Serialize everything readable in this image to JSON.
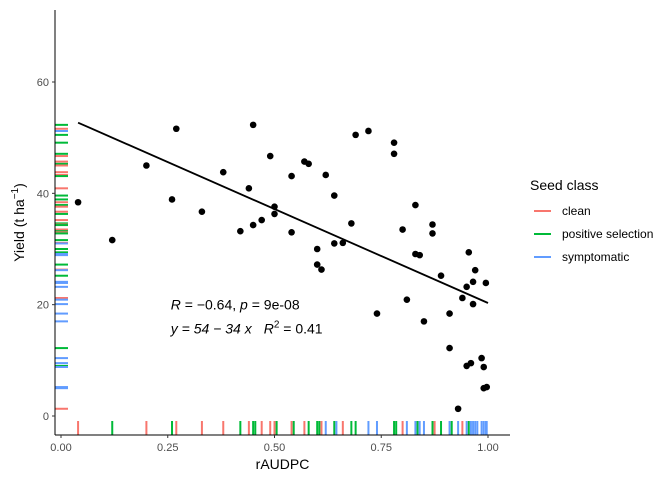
{
  "chart_data": {
    "type": "scatter",
    "title": "",
    "xlabel": "rAUDPC",
    "ylabel_text": "Yield (t ha",
    "ylabel_sup": "−1",
    "ylabel_close": ")",
    "xlim": [
      0,
      1
    ],
    "ylim": [
      -3,
      74
    ],
    "xticks": [
      0.0,
      0.25,
      0.5,
      0.75,
      1.0
    ],
    "xtick_labels": [
      "0.00",
      "0.25",
      "0.50",
      "0.75",
      "1.00"
    ],
    "yticks": [
      0,
      20,
      40,
      60
    ],
    "ytick_labels": [
      "0",
      "20",
      "40",
      "60"
    ],
    "grid": false,
    "legend": {
      "title": "Seed class",
      "position": "right",
      "entries": [
        {
          "label": "clean",
          "color": "#F8766D"
        },
        {
          "label": "positive selection",
          "color": "#00BA38"
        },
        {
          "label": "symptomatic",
          "color": "#619CFF"
        }
      ]
    },
    "points": [
      {
        "x": 0.04,
        "y": 38.4
      },
      {
        "x": 0.12,
        "y": 31.6
      },
      {
        "x": 0.2,
        "y": 45.0
      },
      {
        "x": 0.26,
        "y": 38.9
      },
      {
        "x": 0.27,
        "y": 51.6
      },
      {
        "x": 0.33,
        "y": 36.7
      },
      {
        "x": 0.38,
        "y": 43.8
      },
      {
        "x": 0.42,
        "y": 33.2
      },
      {
        "x": 0.44,
        "y": 40.9
      },
      {
        "x": 0.45,
        "y": 34.3
      },
      {
        "x": 0.45,
        "y": 52.3
      },
      {
        "x": 0.47,
        "y": 35.2
      },
      {
        "x": 0.49,
        "y": 46.7
      },
      {
        "x": 0.5,
        "y": 37.6
      },
      {
        "x": 0.5,
        "y": 36.3
      },
      {
        "x": 0.54,
        "y": 33.0
      },
      {
        "x": 0.54,
        "y": 43.1
      },
      {
        "x": 0.57,
        "y": 45.7
      },
      {
        "x": 0.58,
        "y": 45.3
      },
      {
        "x": 0.6,
        "y": 30.0
      },
      {
        "x": 0.6,
        "y": 27.2
      },
      {
        "x": 0.61,
        "y": 26.3
      },
      {
        "x": 0.62,
        "y": 43.3
      },
      {
        "x": 0.64,
        "y": 39.6
      },
      {
        "x": 0.64,
        "y": 31.0
      },
      {
        "x": 0.66,
        "y": 31.1
      },
      {
        "x": 0.68,
        "y": 34.6
      },
      {
        "x": 0.69,
        "y": 50.5
      },
      {
        "x": 0.72,
        "y": 51.2
      },
      {
        "x": 0.74,
        "y": 18.4
      },
      {
        "x": 0.78,
        "y": 49.1
      },
      {
        "x": 0.78,
        "y": 47.1
      },
      {
        "x": 0.8,
        "y": 33.5
      },
      {
        "x": 0.81,
        "y": 20.9
      },
      {
        "x": 0.83,
        "y": 29.1
      },
      {
        "x": 0.83,
        "y": 37.9
      },
      {
        "x": 0.84,
        "y": 28.9
      },
      {
        "x": 0.85,
        "y": 17.0
      },
      {
        "x": 0.87,
        "y": 32.8
      },
      {
        "x": 0.87,
        "y": 34.4
      },
      {
        "x": 0.89,
        "y": 25.2
      },
      {
        "x": 0.91,
        "y": 18.4
      },
      {
        "x": 0.91,
        "y": 12.2
      },
      {
        "x": 0.93,
        "y": 1.3
      },
      {
        "x": 0.94,
        "y": 21.2
      },
      {
        "x": 0.95,
        "y": 23.2
      },
      {
        "x": 0.955,
        "y": 29.4
      },
      {
        "x": 0.95,
        "y": 9.0
      },
      {
        "x": 0.96,
        "y": 9.5
      },
      {
        "x": 0.965,
        "y": 20.1
      },
      {
        "x": 0.965,
        "y": 24.1
      },
      {
        "x": 0.97,
        "y": 26.2
      },
      {
        "x": 0.985,
        "y": 10.4
      },
      {
        "x": 0.99,
        "y": 8.8
      },
      {
        "x": 0.99,
        "y": 5.0
      },
      {
        "x": 0.995,
        "y": 23.9
      },
      {
        "x": 0.997,
        "y": 5.2
      }
    ],
    "fit_line": {
      "x": [
        0.04,
        1.0
      ],
      "y": [
        52.7,
        20.3
      ]
    },
    "annotation": {
      "line1_R_label": "R",
      "line1_R_val": " = −0.64, ",
      "line1_p_label": "p",
      "line1_p_val": " = 9e-08",
      "line2_eq": "y = 54 − 34 x",
      "line2_r2_label": "R",
      "line2_r2_sup": "2",
      "line2_r2_val": " = 0.41",
      "x": 0.25,
      "y1": 20.0,
      "y2": 15.7
    },
    "rug_x": [
      {
        "v": 0.04,
        "class": "clean"
      },
      {
        "v": 0.12,
        "class": "positive selection"
      },
      {
        "v": 0.2,
        "class": "clean"
      },
      {
        "v": 0.26,
        "class": "positive selection"
      },
      {
        "v": 0.27,
        "class": "clean"
      },
      {
        "v": 0.33,
        "class": "clean"
      },
      {
        "v": 0.38,
        "class": "clean"
      },
      {
        "v": 0.42,
        "class": "positive selection"
      },
      {
        "v": 0.44,
        "class": "clean"
      },
      {
        "v": 0.45,
        "class": "positive selection"
      },
      {
        "v": 0.455,
        "class": "positive selection"
      },
      {
        "v": 0.47,
        "class": "clean"
      },
      {
        "v": 0.49,
        "class": "clean"
      },
      {
        "v": 0.5,
        "class": "clean"
      },
      {
        "v": 0.505,
        "class": "positive selection"
      },
      {
        "v": 0.54,
        "class": "clean"
      },
      {
        "v": 0.545,
        "class": "positive selection"
      },
      {
        "v": 0.57,
        "class": "clean"
      },
      {
        "v": 0.58,
        "class": "positive selection"
      },
      {
        "v": 0.6,
        "class": "positive selection"
      },
      {
        "v": 0.605,
        "class": "positive selection"
      },
      {
        "v": 0.61,
        "class": "clean"
      },
      {
        "v": 0.62,
        "class": "symptomatic"
      },
      {
        "v": 0.64,
        "class": "positive selection"
      },
      {
        "v": 0.645,
        "class": "symptomatic"
      },
      {
        "v": 0.66,
        "class": "clean"
      },
      {
        "v": 0.68,
        "class": "positive selection"
      },
      {
        "v": 0.69,
        "class": "positive selection"
      },
      {
        "v": 0.72,
        "class": "symptomatic"
      },
      {
        "v": 0.74,
        "class": "symptomatic"
      },
      {
        "v": 0.78,
        "class": "positive selection"
      },
      {
        "v": 0.785,
        "class": "positive selection"
      },
      {
        "v": 0.8,
        "class": "clean"
      },
      {
        "v": 0.81,
        "class": "symptomatic"
      },
      {
        "v": 0.83,
        "class": "symptomatic"
      },
      {
        "v": 0.835,
        "class": "positive selection"
      },
      {
        "v": 0.84,
        "class": "symptomatic"
      },
      {
        "v": 0.85,
        "class": "symptomatic"
      },
      {
        "v": 0.87,
        "class": "positive selection"
      },
      {
        "v": 0.875,
        "class": "clean"
      },
      {
        "v": 0.89,
        "class": "positive selection"
      },
      {
        "v": 0.91,
        "class": "symptomatic"
      },
      {
        "v": 0.915,
        "class": "positive selection"
      },
      {
        "v": 0.93,
        "class": "symptomatic"
      },
      {
        "v": 0.94,
        "class": "clean"
      },
      {
        "v": 0.95,
        "class": "symptomatic"
      },
      {
        "v": 0.955,
        "class": "positive selection"
      },
      {
        "v": 0.96,
        "class": "symptomatic"
      },
      {
        "v": 0.965,
        "class": "symptomatic"
      },
      {
        "v": 0.97,
        "class": "symptomatic"
      },
      {
        "v": 0.975,
        "class": "symptomatic"
      },
      {
        "v": 0.985,
        "class": "symptomatic"
      },
      {
        "v": 0.99,
        "class": "symptomatic"
      },
      {
        "v": 0.995,
        "class": "symptomatic"
      },
      {
        "v": 0.997,
        "class": "symptomatic"
      }
    ],
    "rug_y": [
      {
        "v": 52.3,
        "class": "positive selection"
      },
      {
        "v": 51.6,
        "class": "clean"
      },
      {
        "v": 51.2,
        "class": "symptomatic"
      },
      {
        "v": 50.5,
        "class": "positive selection"
      },
      {
        "v": 49.1,
        "class": "positive selection"
      },
      {
        "v": 47.1,
        "class": "positive selection"
      },
      {
        "v": 46.7,
        "class": "clean"
      },
      {
        "v": 45.7,
        "class": "clean"
      },
      {
        "v": 45.3,
        "class": "positive selection"
      },
      {
        "v": 45.0,
        "class": "clean"
      },
      {
        "v": 43.8,
        "class": "clean"
      },
      {
        "v": 43.3,
        "class": "clean"
      },
      {
        "v": 43.1,
        "class": "positive selection"
      },
      {
        "v": 40.9,
        "class": "clean"
      },
      {
        "v": 39.6,
        "class": "positive selection"
      },
      {
        "v": 38.9,
        "class": "positive selection"
      },
      {
        "v": 38.4,
        "class": "clean"
      },
      {
        "v": 37.9,
        "class": "positive selection"
      },
      {
        "v": 37.6,
        "class": "clean"
      },
      {
        "v": 36.7,
        "class": "clean"
      },
      {
        "v": 36.3,
        "class": "positive selection"
      },
      {
        "v": 35.2,
        "class": "clean"
      },
      {
        "v": 34.6,
        "class": "positive selection"
      },
      {
        "v": 34.4,
        "class": "clean"
      },
      {
        "v": 34.3,
        "class": "positive selection"
      },
      {
        "v": 33.5,
        "class": "clean"
      },
      {
        "v": 33.2,
        "class": "positive selection"
      },
      {
        "v": 33.0,
        "class": "clean"
      },
      {
        "v": 32.8,
        "class": "positive selection"
      },
      {
        "v": 31.6,
        "class": "positive selection"
      },
      {
        "v": 31.1,
        "class": "clean"
      },
      {
        "v": 31.0,
        "class": "symptomatic"
      },
      {
        "v": 30.0,
        "class": "positive selection"
      },
      {
        "v": 29.4,
        "class": "positive selection"
      },
      {
        "v": 29.1,
        "class": "symptomatic"
      },
      {
        "v": 28.9,
        "class": "symptomatic"
      },
      {
        "v": 27.2,
        "class": "positive selection"
      },
      {
        "v": 26.3,
        "class": "clean"
      },
      {
        "v": 26.2,
        "class": "symptomatic"
      },
      {
        "v": 25.2,
        "class": "positive selection"
      },
      {
        "v": 24.1,
        "class": "symptomatic"
      },
      {
        "v": 23.9,
        "class": "symptomatic"
      },
      {
        "v": 23.2,
        "class": "symptomatic"
      },
      {
        "v": 21.2,
        "class": "clean"
      },
      {
        "v": 20.9,
        "class": "symptomatic"
      },
      {
        "v": 20.1,
        "class": "symptomatic"
      },
      {
        "v": 18.4,
        "class": "symptomatic"
      },
      {
        "v": 17.0,
        "class": "symptomatic"
      },
      {
        "v": 12.2,
        "class": "positive selection"
      },
      {
        "v": 10.4,
        "class": "symptomatic"
      },
      {
        "v": 9.5,
        "class": "symptomatic"
      },
      {
        "v": 9.0,
        "class": "positive selection"
      },
      {
        "v": 8.8,
        "class": "symptomatic"
      },
      {
        "v": 5.2,
        "class": "symptomatic"
      },
      {
        "v": 5.0,
        "class": "symptomatic"
      },
      {
        "v": 1.3,
        "class": "clean"
      }
    ]
  }
}
